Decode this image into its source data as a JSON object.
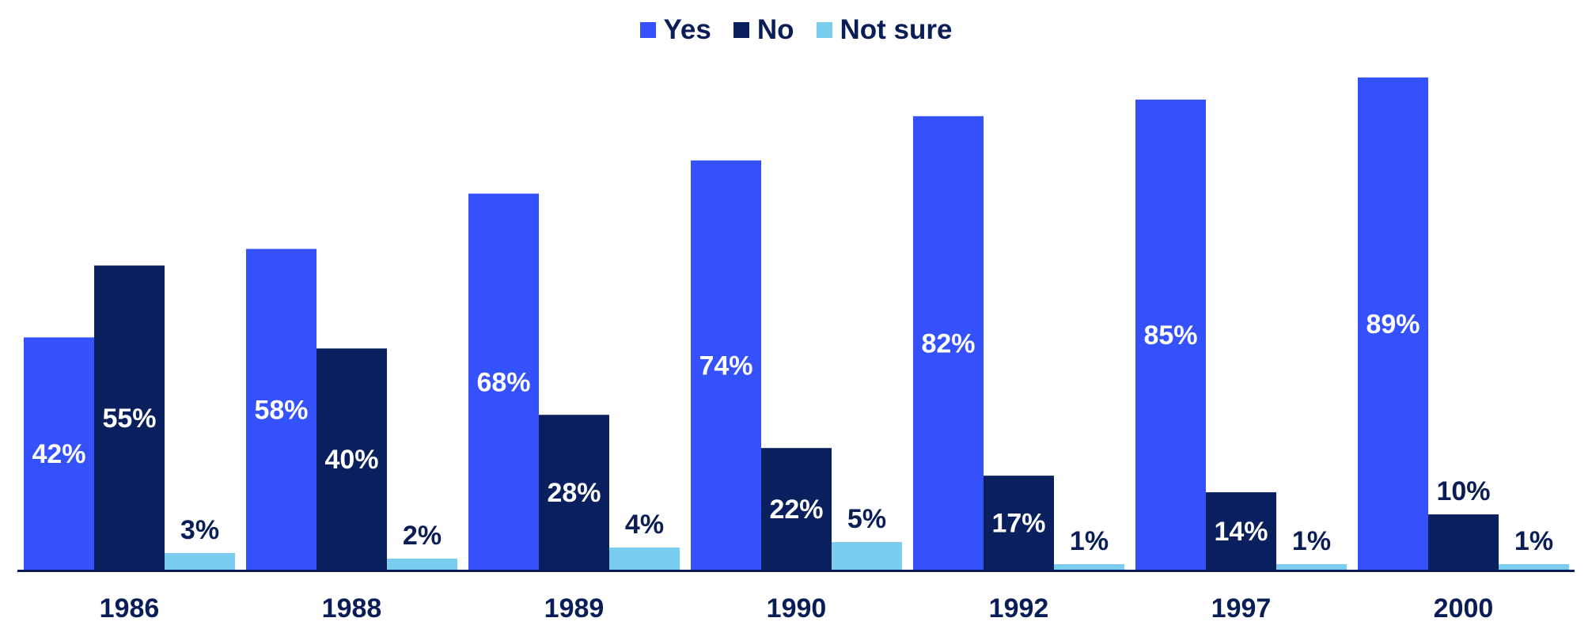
{
  "colors": {
    "Yes": "#3551fb",
    "No": "#0a205e",
    "Not sure": "#79cdee",
    "axis": "#0a1d56"
  },
  "chart_data": {
    "type": "bar",
    "categories": [
      "1986",
      "1988",
      "1989",
      "1990",
      "1992",
      "1997",
      "2000"
    ],
    "series": [
      {
        "name": "Yes",
        "values": [
          42,
          58,
          68,
          74,
          82,
          85,
          89
        ],
        "labels": [
          "42%",
          "58%",
          "68%",
          "74%",
          "82%",
          "85%",
          "89%"
        ]
      },
      {
        "name": "No",
        "values": [
          55,
          40,
          28,
          22,
          17,
          14,
          10
        ],
        "labels": [
          "55%",
          "40%",
          "28%",
          "22%",
          "17%",
          "14%",
          "10%"
        ]
      },
      {
        "name": "Not sure",
        "values": [
          3,
          2,
          4,
          5,
          1,
          1,
          1
        ],
        "labels": [
          "3%",
          "2%",
          "4%",
          "5%",
          "1%",
          "1%",
          "1%"
        ]
      }
    ],
    "ylim": [
      0,
      100
    ],
    "grid": false,
    "legend": "top-center",
    "title": "",
    "xlabel": "",
    "ylabel": ""
  }
}
